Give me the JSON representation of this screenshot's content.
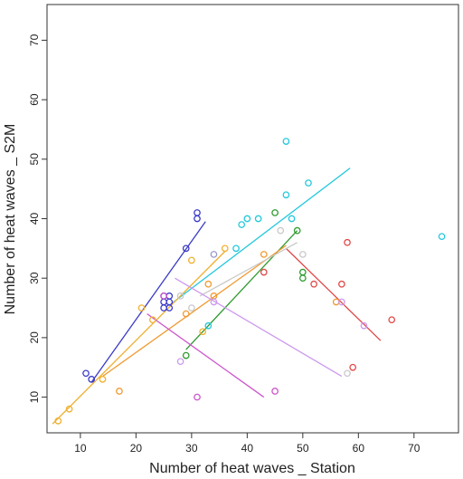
{
  "chart_data": {
    "type": "scatter",
    "title": "",
    "xlabel": "Number of heat waves _ Station",
    "ylabel": "Number of heat waves _ S2M",
    "xlim": [
      4,
      78
    ],
    "ylim": [
      4,
      76
    ],
    "xticks": [
      10,
      20,
      30,
      40,
      50,
      60,
      70
    ],
    "yticks": [
      10,
      20,
      30,
      40,
      50,
      60,
      70
    ],
    "grid": false,
    "marker": "open-circle",
    "series": [
      {
        "color": "#3b3bc8",
        "points": [
          [
            11,
            14
          ],
          [
            12,
            13
          ],
          [
            25,
            27
          ],
          [
            25,
            26
          ],
          [
            25,
            25
          ],
          [
            26,
            27
          ],
          [
            26,
            26
          ],
          [
            26,
            25
          ],
          [
            29,
            35
          ],
          [
            31,
            41
          ],
          [
            31,
            40
          ]
        ],
        "fit": [
          [
            12,
            12.5
          ],
          [
            32.5,
            39.5
          ]
        ]
      },
      {
        "color": "#22c8dc",
        "points": [
          [
            33,
            22
          ],
          [
            38,
            35
          ],
          [
            39,
            39
          ],
          [
            40,
            40
          ],
          [
            42,
            40
          ],
          [
            47,
            44
          ],
          [
            47,
            53
          ],
          [
            48,
            40
          ],
          [
            51,
            46
          ],
          [
            75,
            37
          ]
        ],
        "fit": [
          [
            26.5,
            25.8
          ],
          [
            58.5,
            48.5
          ]
        ]
      },
      {
        "color": "#2e9a2e",
        "points": [
          [
            29,
            17
          ],
          [
            45,
            41
          ],
          [
            49,
            38
          ],
          [
            50,
            31
          ],
          [
            50,
            30
          ]
        ],
        "fit": [
          [
            29,
            18
          ],
          [
            49,
            38
          ]
        ]
      },
      {
        "color": "#e04848",
        "points": [
          [
            43,
            31
          ],
          [
            52,
            29
          ],
          [
            57,
            29
          ],
          [
            58,
            36
          ],
          [
            59,
            15
          ],
          [
            66,
            23
          ]
        ],
        "fit": [
          [
            47,
            35
          ],
          [
            64,
            19.5
          ]
        ]
      },
      {
        "color": "#f0b030",
        "points": [
          [
            6,
            6
          ],
          [
            8,
            8
          ],
          [
            14,
            13
          ],
          [
            21,
            25
          ],
          [
            23,
            23
          ],
          [
            30,
            33
          ],
          [
            32,
            21
          ],
          [
            36,
            35
          ]
        ],
        "fit": [
          [
            5,
            5.5
          ],
          [
            36,
            34.5
          ]
        ]
      },
      {
        "color": "#f09a30",
        "points": [
          [
            17,
            11
          ],
          [
            29,
            24
          ],
          [
            33,
            29
          ],
          [
            34,
            27
          ],
          [
            43,
            34
          ],
          [
            56,
            26
          ]
        ],
        "fit": [
          [
            14,
            13.5
          ],
          [
            47,
            35.5
          ]
        ]
      },
      {
        "color": "#c8c8c8",
        "points": [
          [
            28,
            27
          ],
          [
            30,
            25
          ],
          [
            46,
            38
          ],
          [
            50,
            34
          ],
          [
            58,
            14
          ]
        ],
        "fit": [
          [
            31.5,
            27
          ],
          [
            49,
            36
          ]
        ]
      },
      {
        "color": "#cc99ee",
        "points": [
          [
            28,
            16
          ],
          [
            34,
            26
          ],
          [
            57,
            26
          ],
          [
            61,
            22
          ]
        ],
        "fit": [
          [
            27,
            30
          ],
          [
            57,
            13.5
          ]
        ]
      },
      {
        "color": "#cc55cc",
        "points": [
          [
            25,
            27
          ],
          [
            31,
            10
          ],
          [
            45,
            11
          ]
        ],
        "fit": [
          [
            22,
            24
          ],
          [
            43,
            10
          ]
        ]
      },
      {
        "color": "#9999cc",
        "points": [
          [
            34,
            34
          ]
        ],
        "fit": null
      }
    ]
  }
}
